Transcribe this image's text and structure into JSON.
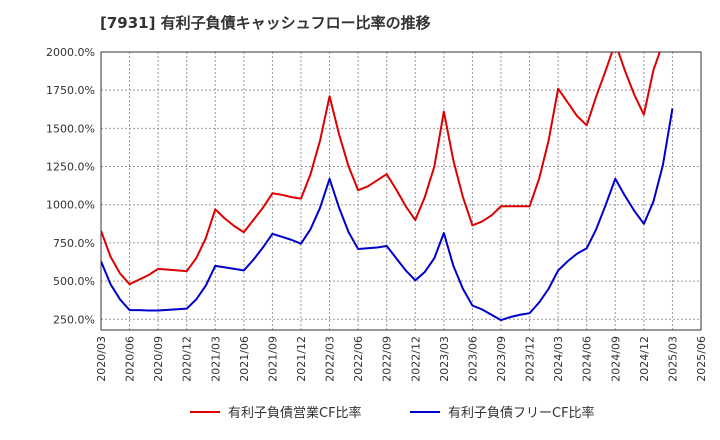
{
  "chart_data": {
    "type": "line",
    "title": "[7931]  有利子負債キャッシュフロー比率の推移",
    "xlabel": "",
    "ylabel": "",
    "ylim": [
      180,
      2000
    ],
    "yticks": [
      250,
      500,
      750,
      1000,
      1250,
      1500,
      1750,
      2000
    ],
    "ytick_labels": [
      "250.0%",
      "500.0%",
      "750.0%",
      "1000.0%",
      "1250.0%",
      "1500.0%",
      "1750.0%",
      "2000.0%"
    ],
    "xticks": [
      "2020/03",
      "2020/06",
      "2020/09",
      "2020/12",
      "2021/03",
      "2021/06",
      "2021/09",
      "2021/12",
      "2022/03",
      "2022/06",
      "2022/09",
      "2022/12",
      "2023/03",
      "2023/06",
      "2023/09",
      "2023/12",
      "2024/03",
      "2024/06",
      "2024/09",
      "2024/12",
      "2025/03",
      "2025/06"
    ],
    "xlim": [
      "2020/03",
      "2025/06"
    ],
    "grid": true,
    "legend_position": "bottom",
    "series": [
      {
        "name": "有利子負債営業CF比率",
        "color": "#dd0000",
        "x": [
          "2020/03",
          "2020/04",
          "2020/05",
          "2020/06",
          "2020/07",
          "2020/08",
          "2020/09",
          "2020/10",
          "2020/11",
          "2020/12",
          "2021/01",
          "2021/02",
          "2021/03",
          "2021/04",
          "2021/05",
          "2021/06",
          "2021/07",
          "2021/08",
          "2021/09",
          "2021/10",
          "2021/11",
          "2021/12",
          "2022/01",
          "2022/02",
          "2022/03",
          "2022/04",
          "2022/05",
          "2022/06",
          "2022/07",
          "2022/08",
          "2022/09",
          "2022/10",
          "2022/11",
          "2022/12",
          "2023/01",
          "2023/02",
          "2023/03",
          "2023/04",
          "2023/05",
          "2023/06",
          "2023/07",
          "2023/08",
          "2023/09",
          "2023/10",
          "2023/11",
          "2023/12",
          "2024/01",
          "2024/02",
          "2024/03",
          "2024/04",
          "2024/05",
          "2024/06",
          "2024/07",
          "2024/08",
          "2024/09",
          "2024/10",
          "2024/11",
          "2024/12",
          "2025/01",
          "2025/02"
        ],
        "values": [
          830,
          660,
          550,
          480,
          510,
          540,
          580,
          575,
          570,
          565,
          650,
          780,
          970,
          910,
          860,
          820,
          900,
          980,
          1075,
          1065,
          1050,
          1040,
          1200,
          1420,
          1710,
          1460,
          1250,
          1095,
          1120,
          1160,
          1200,
          1100,
          990,
          900,
          1050,
          1250,
          1610,
          1290,
          1050,
          865,
          890,
          930,
          990,
          990,
          990,
          990,
          1170,
          1420,
          1760,
          1670,
          1580,
          1520,
          1710,
          1880,
          2060,
          1880,
          1720,
          1590,
          1880,
          2060
        ]
      },
      {
        "name": "有利子負債フリーCF比率",
        "color": "#0000cc",
        "x": [
          "2020/03",
          "2020/04",
          "2020/05",
          "2020/06",
          "2020/07",
          "2020/08",
          "2020/09",
          "2020/10",
          "2020/11",
          "2020/12",
          "2021/01",
          "2021/02",
          "2021/03",
          "2021/04",
          "2021/05",
          "2021/06",
          "2021/07",
          "2021/08",
          "2021/09",
          "2021/10",
          "2021/11",
          "2021/12",
          "2022/01",
          "2022/02",
          "2022/03",
          "2022/04",
          "2022/05",
          "2022/06",
          "2022/07",
          "2022/08",
          "2022/09",
          "2022/10",
          "2022/11",
          "2022/12",
          "2023/01",
          "2023/02",
          "2023/03",
          "2023/04",
          "2023/05",
          "2023/06",
          "2023/07",
          "2023/08",
          "2023/09",
          "2023/10",
          "2023/11",
          "2023/12",
          "2024/01",
          "2024/02",
          "2024/03",
          "2024/04",
          "2024/05",
          "2024/06",
          "2024/07",
          "2024/08",
          "2024/09",
          "2024/10",
          "2024/11",
          "2024/12",
          "2025/01",
          "2025/02",
          "2025/03"
        ],
        "values": [
          630,
          480,
          380,
          310,
          310,
          308,
          308,
          312,
          316,
          320,
          380,
          470,
          600,
          590,
          580,
          570,
          640,
          720,
          810,
          790,
          770,
          745,
          840,
          980,
          1170,
          980,
          820,
          710,
          715,
          720,
          730,
          650,
          570,
          505,
          560,
          650,
          815,
          600,
          450,
          340,
          315,
          280,
          245,
          265,
          280,
          290,
          360,
          450,
          570,
          630,
          680,
          715,
          840,
          1000,
          1170,
          1060,
          960,
          875,
          1020,
          1260,
          1630
        ]
      }
    ]
  }
}
